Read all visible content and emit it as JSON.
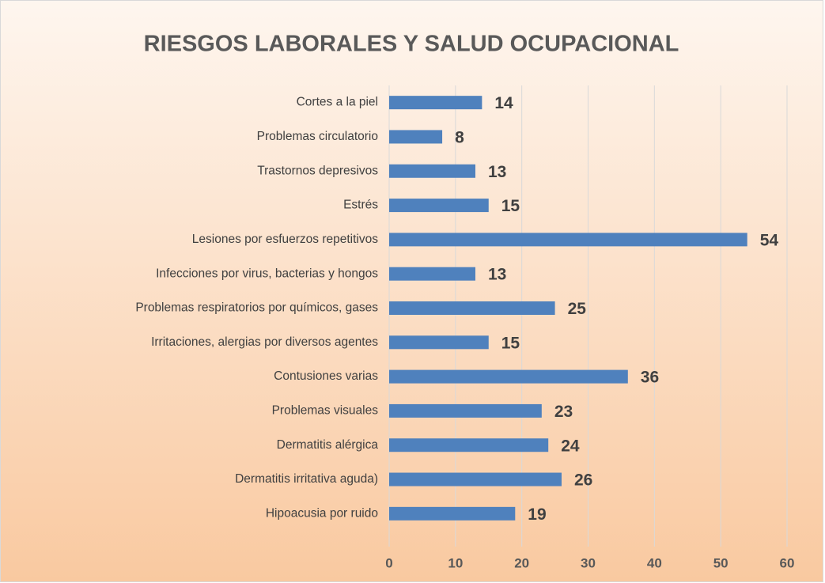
{
  "chart_data": {
    "type": "bar",
    "orientation": "horizontal",
    "title": "RIESGOS LABORALES Y SALUD OCUPACIONAL",
    "categories": [
      "Cortes a la piel",
      "Problemas circulatorio",
      "Trastornos depresivos",
      "Estrés",
      "Lesiones por esfuerzos repetitivos",
      "Infecciones por virus, bacterias y hongos",
      "Problemas respiratorios por químicos, gases",
      "Irritaciones, alergias por diversos agentes",
      "Contusiones varias",
      "Problemas visuales",
      "Dermatitis alérgica",
      "Dermatitis irritativa aguda)",
      "Hipoacusia por ruido"
    ],
    "values": [
      14,
      8,
      13,
      15,
      54,
      13,
      25,
      15,
      36,
      23,
      24,
      26,
      19
    ],
    "color": "#4f81bd",
    "xlim": [
      0,
      60
    ],
    "xticks": [
      0,
      10,
      20,
      30,
      40,
      50,
      60
    ],
    "grid": true
  }
}
